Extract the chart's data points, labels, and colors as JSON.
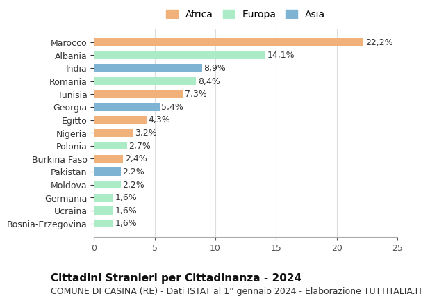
{
  "countries": [
    "Marocco",
    "Albania",
    "India",
    "Romania",
    "Tunisia",
    "Georgia",
    "Egitto",
    "Nigeria",
    "Polonia",
    "Burkina Faso",
    "Pakistan",
    "Moldova",
    "Germania",
    "Ucraina",
    "Bosnia-Erzegovina"
  ],
  "values": [
    22.2,
    14.1,
    8.9,
    8.4,
    7.3,
    5.4,
    4.3,
    3.2,
    2.7,
    2.4,
    2.2,
    2.2,
    1.6,
    1.6,
    1.6
  ],
  "labels": [
    "22,2%",
    "14,1%",
    "8,9%",
    "8,4%",
    "7,3%",
    "5,4%",
    "4,3%",
    "3,2%",
    "2,7%",
    "2,4%",
    "2,2%",
    "2,2%",
    "1,6%",
    "1,6%",
    "1,6%"
  ],
  "continents": [
    "Africa",
    "Europa",
    "Asia",
    "Europa",
    "Africa",
    "Asia",
    "Africa",
    "Africa",
    "Europa",
    "Africa",
    "Asia",
    "Europa",
    "Europa",
    "Europa",
    "Europa"
  ],
  "colors": {
    "Africa": "#F0B27A",
    "Europa": "#ABEBC6",
    "Asia": "#7FB3D3"
  },
  "legend_colors": {
    "Africa": "#F0B27A",
    "Europa": "#ABEBC6",
    "Asia": "#7FB3D3"
  },
  "xlim": [
    0,
    25
  ],
  "xticks": [
    0,
    5,
    10,
    15,
    20,
    25
  ],
  "title": "Cittadini Stranieri per Cittadinanza - 2024",
  "subtitle": "COMUNE DI CASINA (RE) - Dati ISTAT al 1° gennaio 2024 - Elaborazione TUTTITALIA.IT",
  "background_color": "#ffffff",
  "bar_height": 0.6,
  "label_fontsize": 9,
  "title_fontsize": 11,
  "subtitle_fontsize": 9,
  "ytick_fontsize": 9,
  "xtick_fontsize": 9,
  "legend_fontsize": 10
}
